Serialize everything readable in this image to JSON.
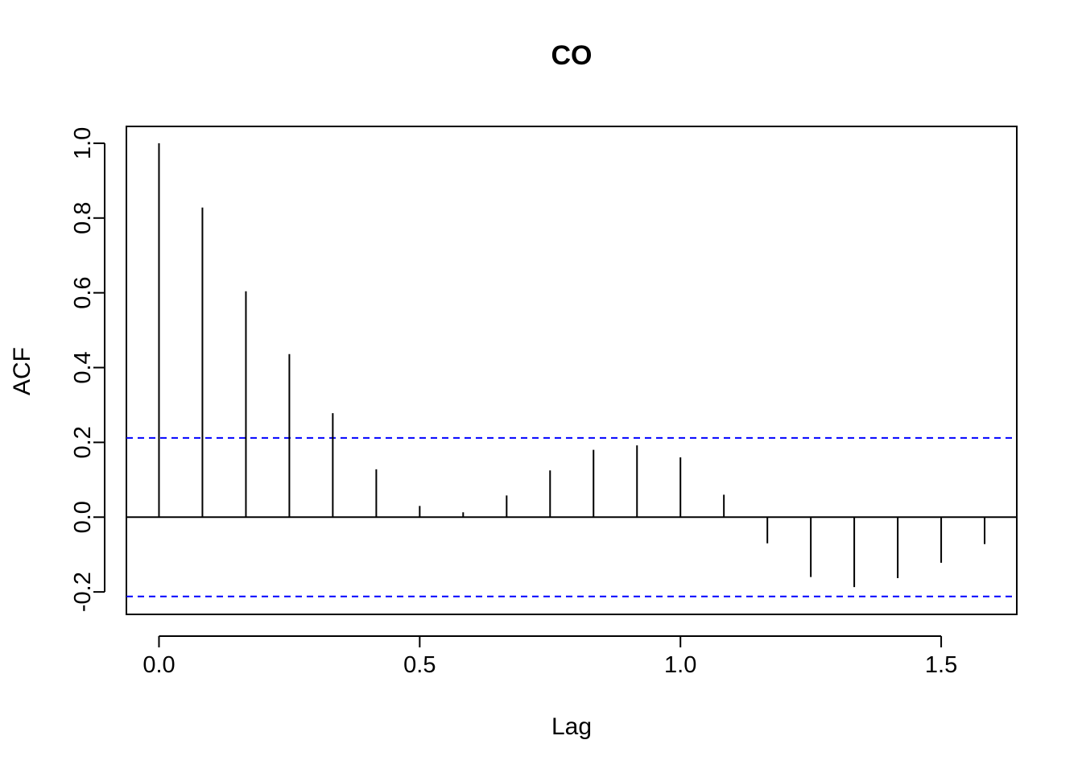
{
  "chart_data": {
    "type": "bar",
    "title": "CO",
    "xlabel": "Lag",
    "ylabel": "ACF",
    "xlim": [
      -0.0625,
      1.645
    ],
    "ylim": [
      -0.26,
      1.045
    ],
    "xticks": [
      "0.0",
      "0.5",
      "1.0",
      "1.5"
    ],
    "yticks": [
      "-0.2",
      "0.0",
      "0.2",
      "0.4",
      "0.6",
      "0.8",
      "1.0"
    ],
    "x": [
      0.0,
      0.0833,
      0.1667,
      0.25,
      0.3333,
      0.4167,
      0.5,
      0.5833,
      0.6667,
      0.75,
      0.8333,
      0.9167,
      1.0,
      1.0833,
      1.1667,
      1.25,
      1.3333,
      1.4167,
      1.5,
      1.5833
    ],
    "values": [
      1.0,
      0.828,
      0.604,
      0.436,
      0.278,
      0.128,
      0.03,
      0.013,
      0.058,
      0.125,
      0.18,
      0.192,
      0.16,
      0.06,
      -0.07,
      -0.16,
      -0.187,
      -0.163,
      -0.122,
      -0.072
    ],
    "confidence_limits": [
      0.212,
      -0.212
    ],
    "grid": false,
    "colors": {
      "bars": "#000000",
      "confidence": "#0000ff",
      "axes": "#000000",
      "background": "#ffffff"
    }
  }
}
